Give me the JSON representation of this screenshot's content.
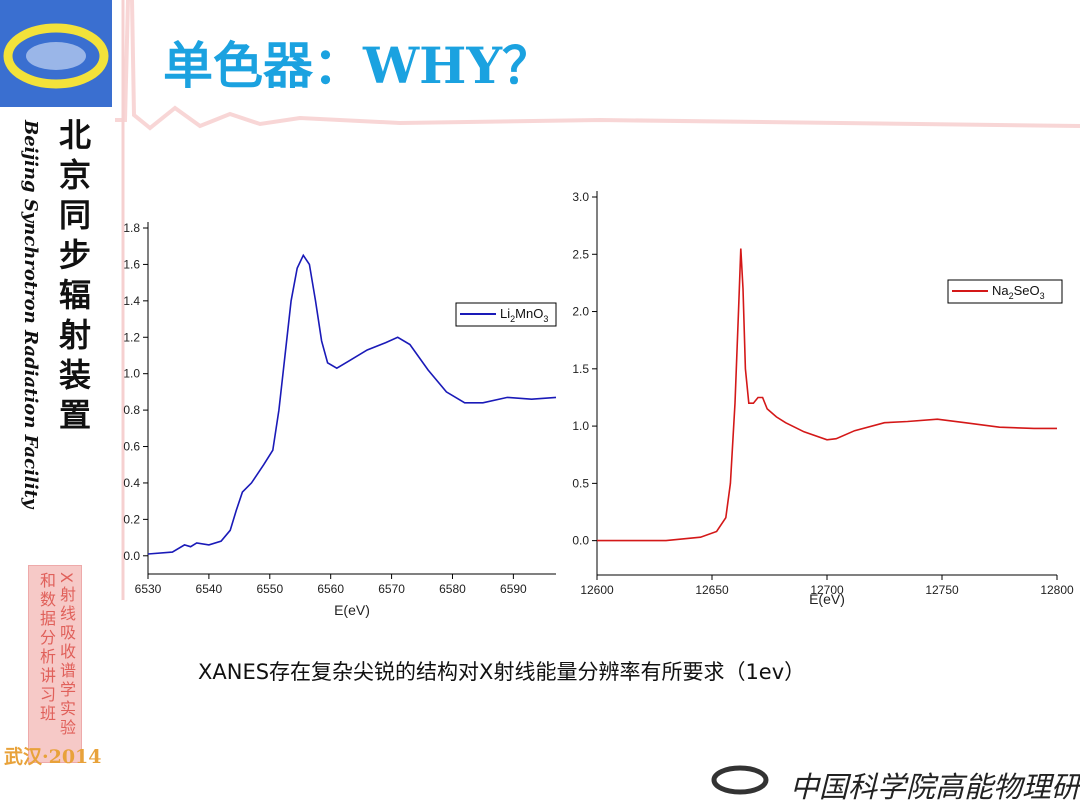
{
  "slide": {
    "title": "单色器：WHY？",
    "institute_cn": "北京同步辐射装置",
    "institute_en": "Beijing Synchrotron Radiation Facility",
    "course_1": "X射线吸收谱学实验",
    "course_2": "和数据分析讲习班",
    "place_year": "武汉·2014",
    "caption": "XANES存在复杂尖锐的结构对X射线能量分辨率有所要求（1ev）",
    "organization": "中国科学院高能物理研究所"
  },
  "chart_data": [
    {
      "type": "line",
      "x_label": "E(eV)",
      "legend": "upper right",
      "x": [
        6530,
        6534,
        6536,
        6537,
        6538,
        6540,
        6542,
        6543.5,
        6544.5,
        6545.5,
        6547,
        6549,
        6550.5,
        6551.5,
        6552.5,
        6553.5,
        6554.5,
        6555.5,
        6556.5,
        6557.5,
        6558.5,
        6559.5,
        6561,
        6563,
        6566,
        6569,
        6571,
        6573,
        6576,
        6579,
        6582,
        6585,
        6589,
        6593,
        6597
      ],
      "series": [
        {
          "name": "Li2MnO3",
          "color": "#1a1ab8",
          "values": [
            0.01,
            0.02,
            0.06,
            0.05,
            0.07,
            0.06,
            0.08,
            0.14,
            0.25,
            0.35,
            0.4,
            0.5,
            0.58,
            0.8,
            1.1,
            1.4,
            1.58,
            1.65,
            1.6,
            1.4,
            1.18,
            1.06,
            1.03,
            1.07,
            1.13,
            1.17,
            1.2,
            1.16,
            1.02,
            0.9,
            0.84,
            0.84,
            0.87,
            0.86,
            0.87
          ]
        }
      ],
      "xlim": [
        6530,
        6597
      ],
      "xticks": [
        6530,
        6540,
        6550,
        6560,
        6570,
        6580,
        6590
      ],
      "ylim": [
        -0.1,
        1.8
      ],
      "yticks": [
        {
          "value": 0,
          "label": "0.0"
        },
        0.2,
        0.4,
        0.6,
        0.8,
        {
          "value": 1,
          "label": "1.0"
        },
        1.2,
        1.4,
        1.6,
        1.8
      ]
    },
    {
      "type": "line",
      "x_label": "E(eV)",
      "legend": "upper right",
      "x": [
        12600,
        12630,
        12645,
        12652,
        12656,
        12658,
        12660,
        12661.5,
        12662.5,
        12663.5,
        12664.5,
        12666,
        12668,
        12670,
        12672,
        12674,
        12678,
        12682,
        12690,
        12700,
        12704,
        12712,
        12725,
        12735,
        12748,
        12760,
        12775,
        12790,
        12800
      ],
      "series": [
        {
          "name": "Na2SeO3",
          "color": "#d41818",
          "values": [
            0,
            0,
            0.03,
            0.08,
            0.2,
            0.5,
            1.2,
            2.0,
            2.55,
            2.2,
            1.5,
            1.2,
            1.2,
            1.25,
            1.25,
            1.15,
            1.08,
            1.03,
            0.95,
            0.88,
            0.89,
            0.96,
            1.03,
            1.04,
            1.06,
            1.03,
            0.99,
            0.98,
            0.98
          ]
        }
      ],
      "xlim": [
        12600,
        12800
      ],
      "xticks": [
        12600,
        12650,
        12700,
        12750,
        12800
      ],
      "ylim": [
        -0.3,
        3.0
      ],
      "yticks": [
        {
          "value": 0,
          "label": "0.0"
        },
        0.5,
        {
          "value": 1,
          "label": "1.0"
        },
        1.5,
        {
          "value": 2,
          "label": "2.0"
        },
        2.5,
        {
          "value": 3,
          "label": "3.0"
        }
      ]
    }
  ]
}
